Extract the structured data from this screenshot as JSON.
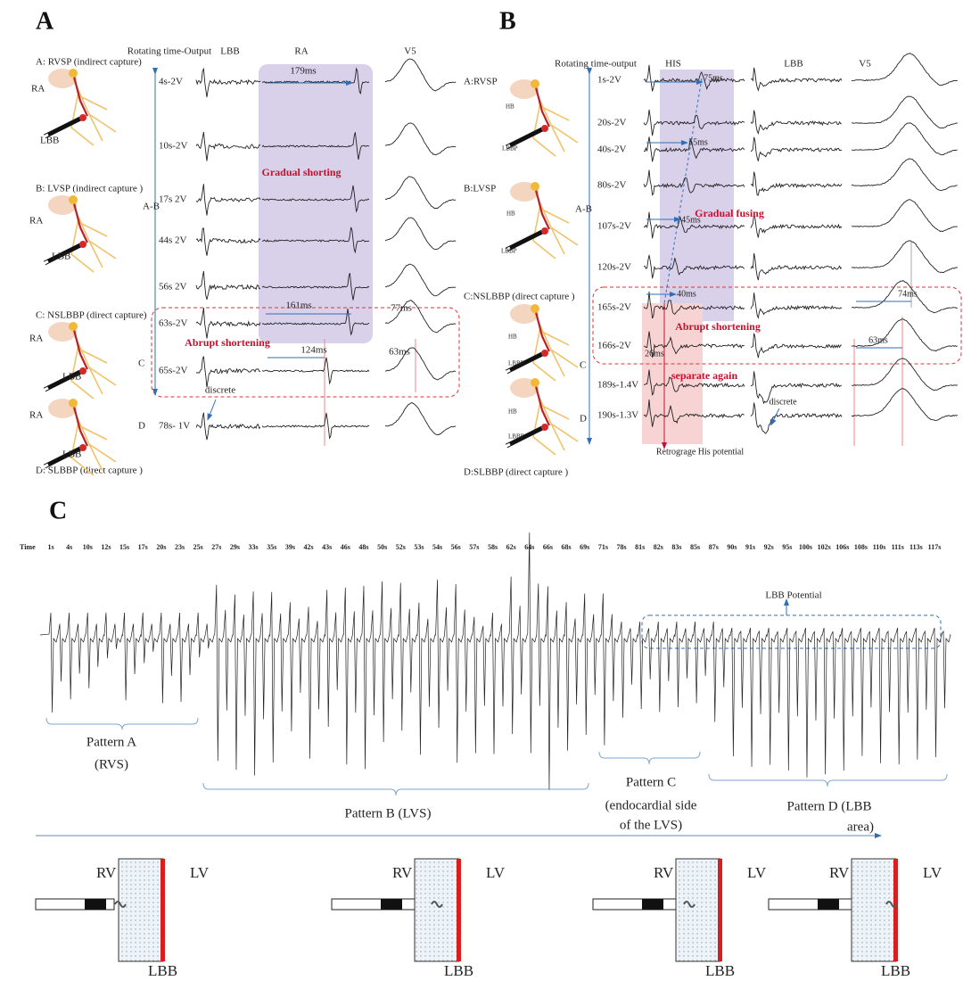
{
  "panel_a": {
    "label": "A",
    "headers": [
      "Rotating time-Output",
      "LBB",
      "RA",
      "V5"
    ],
    "stages": [
      "A: RVSP (indirect capture)",
      "B: LVSP (indirect capture )",
      "C: NSLBBP (direct capture)",
      "D: SLBBP (direct capture )"
    ],
    "diagram_labels": [
      "RA",
      "LBB",
      "RA",
      "LBB",
      "RA",
      "LBB",
      "RA",
      "LBB"
    ],
    "rows": [
      "4s-2V",
      "10s-2V",
      "17s 2V",
      "44s 2V",
      "56s 2V",
      "63s-2V",
      "65s-2V",
      "78s- 1V"
    ],
    "groups": [
      "A-B",
      "C",
      "D"
    ],
    "annotations": [
      "179ms",
      "Gradual shorting",
      "161ms",
      "77ms",
      "Abrupt shortening",
      "124ms",
      "63ms",
      "discrete"
    ]
  },
  "panel_b": {
    "label": "B",
    "headers": [
      "Rotating time-output",
      "HIS",
      "LBB",
      "V5"
    ],
    "stages": [
      "A:RVSP",
      "B:LVSP",
      "C:NSLBBP (direct capture )",
      "D:SLBBP (direct capture )"
    ],
    "diagram_labels": [
      "HB",
      "LBBP",
      "HB",
      "LBBP",
      "HB",
      "LBBP",
      "HB",
      "LBBP"
    ],
    "rows": [
      "1s-2V",
      "20s-2V",
      "40s-2V",
      "80s-2V",
      "107s-2V",
      "120s-2V",
      "165s-2V",
      "166s-2V",
      "189s-1.4V",
      "190s-1.3V"
    ],
    "groups": [
      "A-B",
      "C",
      "D"
    ],
    "annotations": [
      "75ms",
      "55ms",
      "45ms",
      "Gradual fusing",
      "40ms",
      "Abrupt shortening",
      "26ms",
      "separate again",
      "Retrograge His potential",
      "74ms",
      "63ms",
      "discrete"
    ]
  },
  "panel_c": {
    "label": "C",
    "time_label": "Time",
    "times": [
      "1s",
      "4s",
      "10s",
      "12s",
      "15s",
      "17s",
      "20s",
      "23s",
      "25s",
      "27s",
      "29s",
      "33s",
      "35s",
      "39s",
      "42s",
      "43s",
      "46s",
      "48s",
      "50s",
      "52s",
      "53s",
      "54s",
      "56s",
      "57s",
      "58s",
      "62s",
      "64s",
      "66s",
      "68s",
      "69s",
      "71s",
      "78s",
      "81s",
      "82s",
      "83s",
      "85s",
      "87s",
      "90s",
      "91s",
      "92s",
      "95s",
      "100s",
      "102s",
      "106s",
      "108s",
      "110s",
      "111s",
      "113s",
      "117s"
    ],
    "annotation": "LBB Potential",
    "patterns": [
      [
        "Pattern A",
        "(RVS)"
      ],
      [
        "Pattern B   (LVS)"
      ],
      [
        "Pattern C",
        "(endocardial side",
        "of the LVS)"
      ],
      [
        "Pattern D   (LBB",
        "area)"
      ]
    ],
    "diagrams": [
      [
        "RV",
        "LV",
        "LBB"
      ],
      [
        "RV",
        "LV",
        "LBB"
      ],
      [
        "RV",
        "LV",
        "LBB"
      ],
      [
        "RV",
        "LV",
        "LBB"
      ]
    ]
  }
}
